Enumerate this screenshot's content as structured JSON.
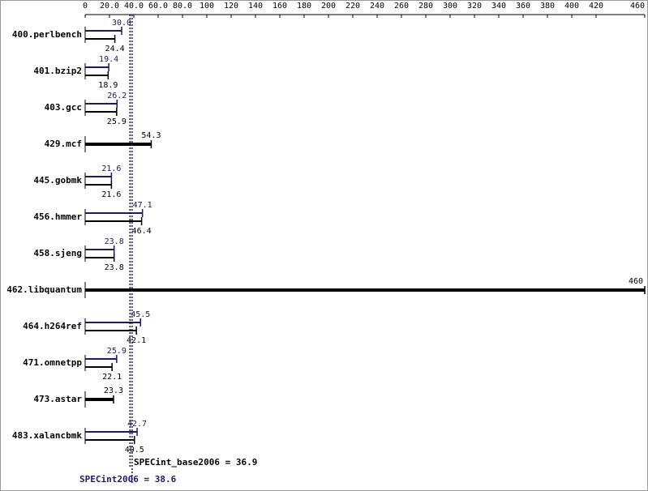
{
  "chart_data": {
    "type": "bar",
    "categories": [
      "400.perlbench",
      "401.bzip2",
      "403.gcc",
      "429.mcf",
      "445.gobmk",
      "456.hmmer",
      "458.sjeng",
      "462.libquantum",
      "464.h264ref",
      "471.omnetpp",
      "473.astar",
      "483.xalancbmk"
    ],
    "series": [
      {
        "color": "#191970",
        "values": [
          30.0,
          19.4,
          26.2,
          null,
          21.6,
          47.1,
          23.8,
          null,
          45.5,
          25.9,
          null,
          42.7
        ],
        "value_labels": [
          "30.0",
          "19.4",
          "26.2",
          null,
          "21.6",
          "47.1",
          "23.8",
          null,
          "45.5",
          "25.9",
          null,
          "42.7"
        ]
      },
      {
        "color": "#000000",
        "values": [
          24.4,
          18.9,
          25.9,
          54.3,
          21.6,
          46.4,
          23.8,
          460,
          42.1,
          22.1,
          23.3,
          40.5
        ],
        "value_labels": [
          "24.4",
          "18.9",
          "25.9",
          "54.3",
          "21.6",
          "46.4",
          "23.8",
          "460",
          "42.1",
          "22.1",
          "23.3",
          "40.5"
        ]
      }
    ],
    "reference_lines": [
      {
        "label": "SPECint_base2006 = 36.9",
        "value": 36.9,
        "color": "#000000"
      },
      {
        "label": "SPECint2006 = 38.6",
        "value": 38.6,
        "color": "#191970"
      }
    ],
    "xlim": [
      0,
      460
    ],
    "xticks": [
      0,
      {
        "value": 20,
        "label": "20.0"
      },
      {
        "value": 40,
        "label": "40.0"
      },
      {
        "value": 60,
        "label": "60.0"
      },
      {
        "value": 80,
        "label": "80.0"
      },
      100,
      120,
      140,
      160,
      180,
      200,
      220,
      240,
      260,
      280,
      300,
      320,
      340,
      360,
      380,
      400,
      420,
      460
    ]
  }
}
